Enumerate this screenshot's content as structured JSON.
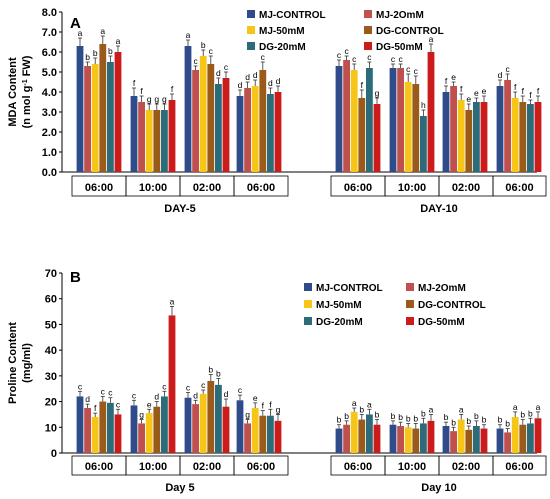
{
  "colors": [
    "#2f4b8a",
    "#c0504d",
    "#f5c518",
    "#9a5a1a",
    "#2c6b7a",
    "#cc1b1b"
  ],
  "chart_data": [
    {
      "type": "bar",
      "panel_label": "A",
      "ylabel_main": "MDA Content",
      "ylabel_unit_pre": "(n mol g",
      "ylabel_unit_sup": "-1",
      "ylabel_unit_post": " FW)",
      "ylim": [
        0,
        8
      ],
      "yticks": [
        "0.0",
        "1.0",
        "2.0",
        "3.0",
        "4.0",
        "5.0",
        "6.0",
        "7.0",
        "8.0"
      ],
      "series_names": [
        "MJ-CONTROL",
        "MJ-2OmM",
        "MJ-50mM",
        "DG-CONTROL",
        "DG-20mM",
        "DG-50mM"
      ],
      "group_labels": [
        "DAY-5",
        "DAY-10"
      ],
      "categories": [
        "06:00",
        "10:00",
        "02:00",
        "06:00",
        "06:00",
        "10:00",
        "02:00",
        "06:00"
      ],
      "values": [
        [
          6.3,
          5.3,
          5.4,
          6.4,
          5.5,
          6.0
        ],
        [
          3.8,
          3.5,
          3.1,
          3.1,
          3.1,
          3.6
        ],
        [
          6.3,
          5.1,
          5.8,
          5.4,
          4.4,
          4.7
        ],
        [
          3.8,
          4.2,
          4.3,
          5.1,
          3.9,
          4.0
        ],
        [
          5.3,
          5.6,
          5.1,
          3.7,
          5.2,
          3.4
        ],
        [
          5.2,
          5.2,
          4.5,
          4.4,
          2.8,
          6.0
        ],
        [
          4.0,
          4.3,
          3.6,
          3.1,
          3.5,
          3.5
        ],
        [
          4.3,
          4.6,
          3.7,
          3.5,
          3.4,
          3.5
        ]
      ],
      "errors": [
        [
          0.4,
          0.2,
          0.3,
          0.4,
          0.3,
          0.3
        ],
        [
          0.4,
          0.3,
          0.3,
          0.3,
          0.3,
          0.3
        ],
        [
          0.3,
          0.2,
          0.3,
          0.4,
          0.3,
          0.3
        ],
        [
          0.3,
          0.3,
          0.3,
          0.4,
          0.3,
          0.3
        ],
        [
          0.3,
          0.2,
          0.3,
          0.4,
          0.3,
          0.3
        ],
        [
          0.2,
          0.2,
          0.4,
          0.4,
          0.3,
          0.4
        ],
        [
          0.3,
          0.2,
          0.3,
          0.3,
          0.2,
          0.3
        ],
        [
          0.3,
          0.3,
          0.3,
          0.3,
          0.2,
          0.3
        ]
      ],
      "significance": [
        [
          "a",
          "b",
          "b",
          "a",
          "b",
          "a"
        ],
        [
          "f",
          "f",
          "g",
          "g",
          "g",
          "f"
        ],
        [
          "a",
          "c",
          "b",
          "c",
          "d",
          "c"
        ],
        [
          "d",
          "d",
          "d",
          "c",
          "d",
          "d"
        ],
        [
          "c",
          "c",
          "c",
          "f",
          "c",
          "g"
        ],
        [
          "c",
          "c",
          "c",
          "c",
          "h",
          "a"
        ],
        [
          "f",
          "e",
          "f",
          "e",
          "e",
          "e"
        ],
        [
          "d",
          "c",
          "f",
          "f",
          "f",
          "f"
        ]
      ],
      "legend_rows": [
        [
          0,
          1
        ],
        [
          2,
          3
        ],
        [
          4,
          5
        ]
      ]
    },
    {
      "type": "bar",
      "panel_label": "B",
      "ylabel_main": "Proline Content",
      "ylabel_unit_pre": "(mg/ml)",
      "ylabel_unit_sup": "",
      "ylabel_unit_post": "",
      "ylim": [
        0,
        70
      ],
      "yticks": [
        "0",
        "10",
        "20",
        "30",
        "40",
        "50",
        "60",
        "70"
      ],
      "series_names": [
        "MJ-CONTROL",
        "MJ-2OmM",
        "MJ-50mM",
        "DG-CONTROL",
        "DG-20mM",
        "DG-50mM"
      ],
      "group_labels": [
        "Day 5",
        "Day 10"
      ],
      "categories": [
        "06:00",
        "10:00",
        "02:00",
        "06:00",
        "06:00",
        "10:00",
        "02:00",
        "06:00"
      ],
      "values": [
        [
          22,
          17.5,
          14,
          20,
          19.5,
          15
        ],
        [
          18.5,
          11.5,
          15.5,
          18,
          22,
          53.5
        ],
        [
          21.5,
          19,
          23,
          28,
          26.5,
          18
        ],
        [
          20.5,
          11.5,
          17.5,
          14.5,
          14.5,
          12.5
        ],
        [
          9.5,
          11,
          16,
          13,
          15,
          11
        ],
        [
          11,
          10.5,
          10,
          9.5,
          11.5,
          12.5
        ],
        [
          10.5,
          8.5,
          13,
          9,
          10.5,
          9.5
        ],
        [
          9.5,
          8,
          14,
          11,
          11.5,
          13.5
        ]
      ],
      "errors": [
        [
          2,
          1.5,
          1.5,
          2,
          2,
          2
        ],
        [
          2,
          1.5,
          1.5,
          2,
          2,
          3.5
        ],
        [
          2,
          1.5,
          1.5,
          2.5,
          2.5,
          3
        ],
        [
          2,
          1.5,
          2,
          2,
          2.5,
          2.5
        ],
        [
          1.5,
          1.5,
          1.5,
          2,
          2,
          2
        ],
        [
          1.5,
          1.5,
          1.5,
          2,
          2,
          2.5
        ],
        [
          1.5,
          1.5,
          2,
          1.5,
          2,
          1.5
        ],
        [
          1.5,
          1.5,
          2,
          2,
          2,
          2.5
        ]
      ],
      "significance": [
        [
          "c",
          "d",
          "f",
          "c",
          "c",
          "c"
        ],
        [
          "c",
          "g",
          "e",
          "d",
          "c",
          "a"
        ],
        [
          "c",
          "d",
          "c",
          "b",
          "b",
          "d"
        ],
        [
          "c",
          "g",
          "e",
          "f",
          "f",
          "g"
        ],
        [
          "b",
          "b",
          "a",
          "b",
          "a",
          "b"
        ],
        [
          "b",
          "b",
          "b",
          "b",
          "b",
          "a"
        ],
        [
          "b",
          "b",
          "a",
          "b",
          "b",
          "b"
        ],
        [
          "b",
          "b",
          "a",
          "b",
          "b",
          "a"
        ]
      ],
      "legend_rows": [
        [
          0,
          1
        ],
        [
          2,
          3
        ],
        [
          4,
          5
        ]
      ]
    }
  ]
}
